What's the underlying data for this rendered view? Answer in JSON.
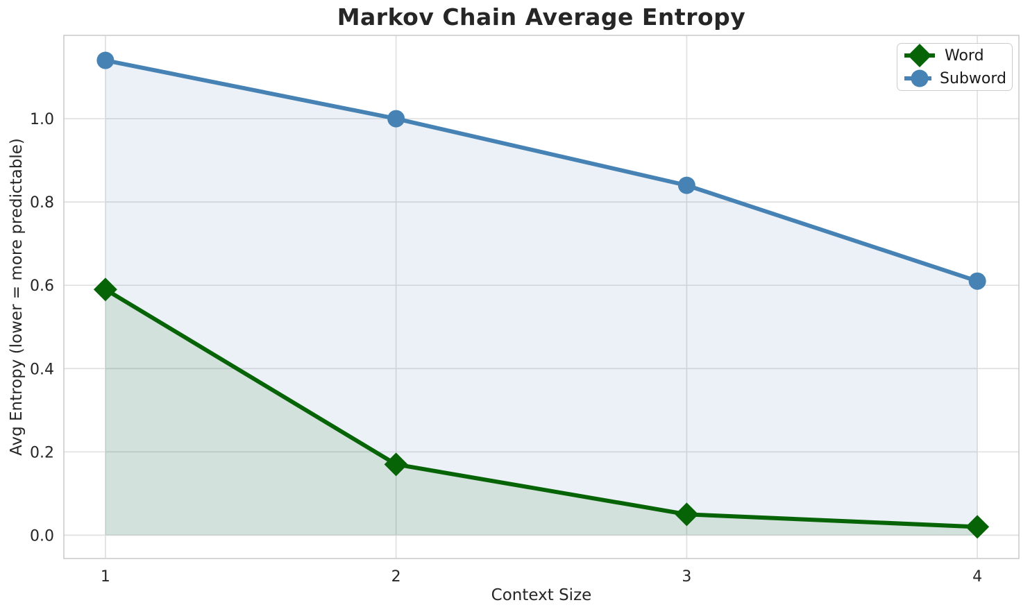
{
  "chart_data": {
    "type": "line",
    "title": "Markov Chain Average Entropy",
    "xlabel": "Context Size",
    "ylabel": "Avg Entropy (lower = more predictable)",
    "x": [
      1,
      2,
      3,
      4
    ],
    "series": [
      {
        "name": "Word",
        "values": [
          0.59,
          0.17,
          0.05,
          0.02
        ],
        "color": "#066406",
        "marker": "diamond",
        "area_fill": true
      },
      {
        "name": "Subword",
        "values": [
          1.14,
          1.0,
          0.84,
          0.61
        ],
        "color": "#4682b4",
        "marker": "circle",
        "area_fill": true
      }
    ],
    "xticks": [
      1,
      2,
      3,
      4
    ],
    "xticklabels": [
      "1",
      "2",
      "3",
      "4"
    ],
    "yticks": [
      0.0,
      0.2,
      0.4,
      0.6,
      0.8,
      1.0
    ],
    "yticklabels": [
      "0.0",
      "0.2",
      "0.4",
      "0.6",
      "0.8",
      "1.0"
    ],
    "xlim": [
      0.857,
      4.143
    ],
    "ylim": [
      -0.056,
      1.2
    ],
    "grid": true,
    "legend_position": "upper right"
  },
  "style_colors": {
    "grid": "#e0e0e0",
    "spine": "#cccccc",
    "text": "#262626",
    "area_opacity": "0.11"
  }
}
